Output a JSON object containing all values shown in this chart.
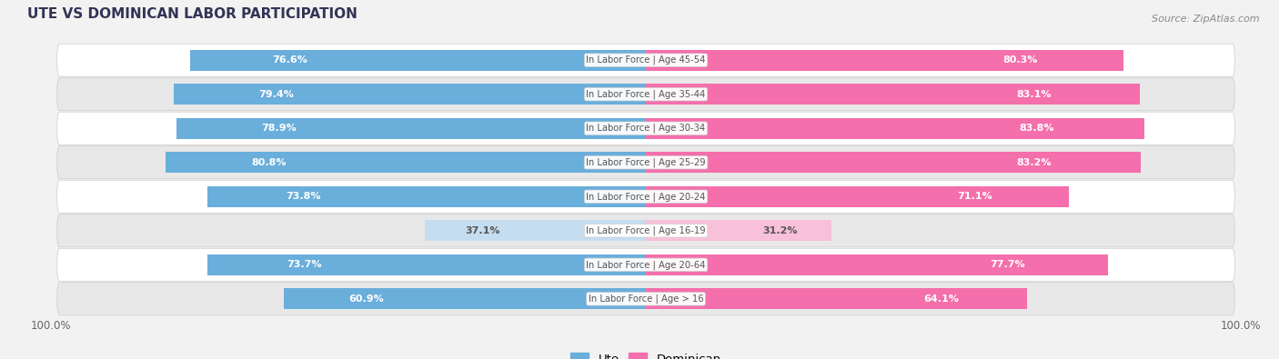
{
  "title": "UTE VS DOMINICAN LABOR PARTICIPATION",
  "source": "Source: ZipAtlas.com",
  "categories": [
    "In Labor Force | Age > 16",
    "In Labor Force | Age 20-64",
    "In Labor Force | Age 16-19",
    "In Labor Force | Age 20-24",
    "In Labor Force | Age 25-29",
    "In Labor Force | Age 30-34",
    "In Labor Force | Age 35-44",
    "In Labor Force | Age 45-54"
  ],
  "ute_values": [
    60.9,
    73.7,
    37.1,
    73.8,
    80.8,
    78.9,
    79.4,
    76.6
  ],
  "dominican_values": [
    64.1,
    77.7,
    31.2,
    71.1,
    83.2,
    83.8,
    83.1,
    80.3
  ],
  "ute_color_full": "#6aaedb",
  "ute_color_light": "#c5ddf0",
  "dominican_color_full": "#f46fab",
  "dominican_color_light": "#f9c0d9",
  "bg_color": "#f2f2f2",
  "row_color_odd": "#ffffff",
  "row_color_even": "#e8e8e8",
  "label_color_white": "#ffffff",
  "label_color_dark": "#555555",
  "cat_label_color": "#555555",
  "threshold": 50,
  "bar_height": 0.62,
  "legend_ute": "Ute",
  "legend_dominican": "Dominican",
  "title_color": "#333355",
  "source_color": "#888888"
}
